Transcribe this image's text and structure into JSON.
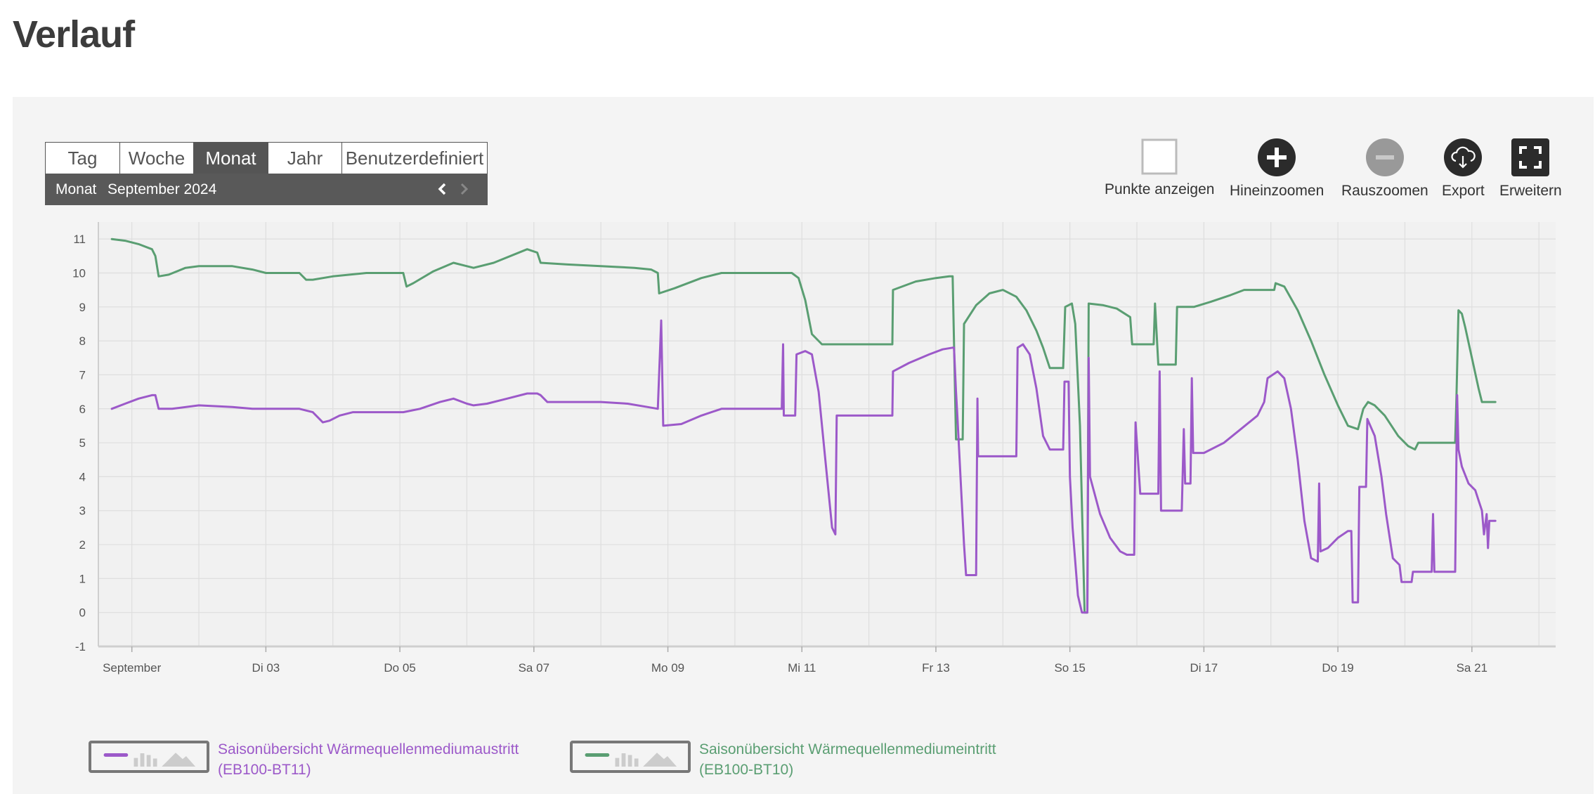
{
  "page": {
    "title": "Verlauf"
  },
  "period": {
    "tabs": [
      {
        "label": "Tag",
        "active": false
      },
      {
        "label": "Woche",
        "active": false
      },
      {
        "label": "Monat",
        "active": true
      },
      {
        "label": "Jahr",
        "active": false
      },
      {
        "label": "Benutzerdefiniert",
        "active": false
      }
    ],
    "selector_label": "Monat",
    "selector_value": "September 2024"
  },
  "toolbar": {
    "show_points": "Punkte anzeigen",
    "zoom_in": "Hineinzoomen",
    "zoom_out": "Rauszoomen",
    "export": "Export",
    "expand": "Erweitern"
  },
  "legend": {
    "series1_line1": "Saisonübersicht Wärmequellenmediumaustritt",
    "series1_line2": "(EB100-BT11)",
    "series2_line1": "Saisonübersicht Wärmequellenmediumeintritt",
    "series2_line2": "(EB100-BT10)"
  },
  "colors": {
    "purple": "#9c59c9",
    "green": "#5a9e72",
    "accent_dark": "#555555"
  },
  "chart_data": {
    "type": "line",
    "xlim": [
      0.5,
      22.25
    ],
    "ylim": [
      -1,
      11.5
    ],
    "yticks": [
      -1,
      0,
      1,
      2,
      3,
      4,
      5,
      6,
      7,
      8,
      9,
      10,
      11
    ],
    "xticks": [
      {
        "x": 1,
        "label": "September"
      },
      {
        "x": 3,
        "label": "Di 03"
      },
      {
        "x": 5,
        "label": "Do 05"
      },
      {
        "x": 7,
        "label": "Sa 07"
      },
      {
        "x": 9,
        "label": "Mo 09"
      },
      {
        "x": 11,
        "label": "Mi 11"
      },
      {
        "x": 13,
        "label": "Fr 13"
      },
      {
        "x": 15,
        "label": "So 15"
      },
      {
        "x": 17,
        "label": "Di 17"
      },
      {
        "x": 19,
        "label": "Do 19"
      },
      {
        "x": 21,
        "label": "Sa 21"
      }
    ],
    "series": [
      {
        "name": "Saisonübersicht Wärmequellenmediumeintritt (EB100-BT10)",
        "color": "#5a9e72",
        "points": [
          [
            0.7,
            11
          ],
          [
            0.9,
            10.95
          ],
          [
            1.1,
            10.85
          ],
          [
            1.3,
            10.7
          ],
          [
            1.35,
            10.5
          ],
          [
            1.4,
            9.9
          ],
          [
            1.55,
            9.95
          ],
          [
            1.8,
            10.15
          ],
          [
            2,
            10.2
          ],
          [
            2.5,
            10.2
          ],
          [
            2.8,
            10.1
          ],
          [
            3,
            10
          ],
          [
            3.3,
            10
          ],
          [
            3.5,
            10
          ],
          [
            3.6,
            9.8
          ],
          [
            3.7,
            9.8
          ],
          [
            4,
            9.9
          ],
          [
            4.5,
            10
          ],
          [
            5.05,
            10
          ],
          [
            5.1,
            9.6
          ],
          [
            5.2,
            9.7
          ],
          [
            5.5,
            10.05
          ],
          [
            5.8,
            10.3
          ],
          [
            6,
            10.2
          ],
          [
            6.1,
            10.15
          ],
          [
            6.4,
            10.3
          ],
          [
            6.9,
            10.7
          ],
          [
            7.05,
            10.6
          ],
          [
            7.1,
            10.3
          ],
          [
            7.5,
            10.25
          ],
          [
            8,
            10.2
          ],
          [
            8.5,
            10.15
          ],
          [
            8.75,
            10.1
          ],
          [
            8.85,
            10
          ],
          [
            8.87,
            9.4
          ],
          [
            9.1,
            9.55
          ],
          [
            9.5,
            9.85
          ],
          [
            9.8,
            10
          ],
          [
            10,
            10
          ],
          [
            10.5,
            10
          ],
          [
            10.85,
            10
          ],
          [
            10.95,
            9.85
          ],
          [
            11.05,
            9.2
          ],
          [
            11.15,
            8.2
          ],
          [
            11.3,
            7.9
          ],
          [
            11.7,
            7.9
          ],
          [
            12.35,
            7.9
          ],
          [
            12.36,
            9.5
          ],
          [
            12.7,
            9.75
          ],
          [
            13,
            9.85
          ],
          [
            13.2,
            9.9
          ],
          [
            13.25,
            9.9
          ],
          [
            13.3,
            5.1
          ],
          [
            13.4,
            5.1
          ],
          [
            13.42,
            8.5
          ],
          [
            13.6,
            9.05
          ],
          [
            13.8,
            9.4
          ],
          [
            14,
            9.5
          ],
          [
            14.2,
            9.3
          ],
          [
            14.35,
            8.9
          ],
          [
            14.5,
            8.3
          ],
          [
            14.6,
            7.8
          ],
          [
            14.7,
            7.2
          ],
          [
            14.9,
            7.2
          ],
          [
            14.93,
            9
          ],
          [
            15.03,
            9.1
          ],
          [
            15.08,
            8.5
          ],
          [
            15.15,
            5.5
          ],
          [
            15.22,
            0
          ],
          [
            15.26,
            0
          ],
          [
            15.28,
            9.1
          ],
          [
            15.5,
            9.05
          ],
          [
            15.7,
            8.95
          ],
          [
            15.9,
            8.7
          ],
          [
            15.93,
            7.9
          ],
          [
            16.2,
            7.9
          ],
          [
            16.25,
            7.9
          ],
          [
            16.27,
            9.1
          ],
          [
            16.32,
            7.3
          ],
          [
            16.58,
            7.3
          ],
          [
            16.6,
            9
          ],
          [
            16.85,
            9
          ],
          [
            17.1,
            9.15
          ],
          [
            17.4,
            9.35
          ],
          [
            17.6,
            9.5
          ],
          [
            17.95,
            9.5
          ],
          [
            18.05,
            9.5
          ],
          [
            18.07,
            9.7
          ],
          [
            18.2,
            9.6
          ],
          [
            18.4,
            8.9
          ],
          [
            18.6,
            8
          ],
          [
            18.8,
            7
          ],
          [
            19,
            6.1
          ],
          [
            19.15,
            5.5
          ],
          [
            19.3,
            5.4
          ],
          [
            19.38,
            6
          ],
          [
            19.45,
            6.2
          ],
          [
            19.55,
            6.1
          ],
          [
            19.7,
            5.8
          ],
          [
            19.9,
            5.2
          ],
          [
            20.05,
            4.9
          ],
          [
            20.15,
            4.8
          ],
          [
            20.2,
            5
          ],
          [
            20.4,
            5
          ],
          [
            20.75,
            5
          ],
          [
            20.77,
            6.4
          ],
          [
            20.8,
            8.9
          ],
          [
            20.85,
            8.8
          ],
          [
            20.9,
            8.4
          ],
          [
            21,
            7.5
          ],
          [
            21.1,
            6.6
          ],
          [
            21.15,
            6.2
          ],
          [
            21.2,
            6.2
          ],
          [
            21.35,
            6.2
          ]
        ]
      },
      {
        "name": "Saisonübersicht Wärmequellenmediumaustritt (EB100-BT11)",
        "color": "#9c59c9",
        "points": [
          [
            0.7,
            6
          ],
          [
            0.9,
            6.15
          ],
          [
            1.1,
            6.3
          ],
          [
            1.3,
            6.4
          ],
          [
            1.35,
            6.4
          ],
          [
            1.4,
            6
          ],
          [
            1.6,
            6
          ],
          [
            2,
            6.1
          ],
          [
            2.5,
            6.05
          ],
          [
            2.8,
            6
          ],
          [
            3,
            6
          ],
          [
            3.5,
            6
          ],
          [
            3.6,
            5.95
          ],
          [
            3.7,
            5.9
          ],
          [
            3.85,
            5.6
          ],
          [
            3.95,
            5.65
          ],
          [
            4.1,
            5.8
          ],
          [
            4.3,
            5.9
          ],
          [
            4.8,
            5.9
          ],
          [
            5.05,
            5.9
          ],
          [
            5.3,
            6
          ],
          [
            5.6,
            6.2
          ],
          [
            5.8,
            6.3
          ],
          [
            6,
            6.15
          ],
          [
            6.1,
            6.1
          ],
          [
            6.3,
            6.15
          ],
          [
            6.6,
            6.3
          ],
          [
            6.9,
            6.45
          ],
          [
            7.05,
            6.45
          ],
          [
            7.1,
            6.4
          ],
          [
            7.2,
            6.2
          ],
          [
            7.5,
            6.2
          ],
          [
            8,
            6.2
          ],
          [
            8.4,
            6.15
          ],
          [
            8.7,
            6.05
          ],
          [
            8.85,
            6
          ],
          [
            8.9,
            8.6
          ],
          [
            8.93,
            5.5
          ],
          [
            9.2,
            5.55
          ],
          [
            9.5,
            5.8
          ],
          [
            9.8,
            6
          ],
          [
            10,
            6
          ],
          [
            10.5,
            6
          ],
          [
            10.7,
            6
          ],
          [
            10.72,
            7.9
          ],
          [
            10.73,
            5.8
          ],
          [
            10.9,
            5.8
          ],
          [
            10.92,
            7.6
          ],
          [
            11.05,
            7.7
          ],
          [
            11.15,
            7.6
          ],
          [
            11.25,
            6.5
          ],
          [
            11.35,
            4.5
          ],
          [
            11.45,
            2.5
          ],
          [
            11.5,
            2.3
          ],
          [
            11.52,
            5.8
          ],
          [
            11.6,
            5.8
          ],
          [
            12.35,
            5.8
          ],
          [
            12.36,
            7.1
          ],
          [
            12.6,
            7.35
          ],
          [
            12.9,
            7.6
          ],
          [
            13.1,
            7.75
          ],
          [
            13.25,
            7.8
          ],
          [
            13.27,
            7.8
          ],
          [
            13.3,
            6.5
          ],
          [
            13.32,
            5.8
          ],
          [
            13.38,
            3.5
          ],
          [
            13.42,
            2
          ],
          [
            13.45,
            1.1
          ],
          [
            13.55,
            1.1
          ],
          [
            13.6,
            1.1
          ],
          [
            13.62,
            6.3
          ],
          [
            13.63,
            4.6
          ],
          [
            14,
            4.6
          ],
          [
            14.2,
            4.6
          ],
          [
            14.22,
            7.8
          ],
          [
            14.3,
            7.9
          ],
          [
            14.4,
            7.6
          ],
          [
            14.5,
            6.6
          ],
          [
            14.6,
            5.2
          ],
          [
            14.7,
            4.8
          ],
          [
            14.9,
            4.8
          ],
          [
            14.92,
            6.8
          ],
          [
            14.98,
            6.8
          ],
          [
            15,
            4
          ],
          [
            15.04,
            2.5
          ],
          [
            15.08,
            1.5
          ],
          [
            15.12,
            0.5
          ],
          [
            15.18,
            0
          ],
          [
            15.26,
            0
          ],
          [
            15.28,
            7.5
          ],
          [
            15.3,
            4
          ],
          [
            15.45,
            2.9
          ],
          [
            15.6,
            2.2
          ],
          [
            15.75,
            1.8
          ],
          [
            15.85,
            1.7
          ],
          [
            15.96,
            1.7
          ],
          [
            15.98,
            5.6
          ],
          [
            16.05,
            3.5
          ],
          [
            16.22,
            3.5
          ],
          [
            16.32,
            3.5
          ],
          [
            16.34,
            7.1
          ],
          [
            16.36,
            3
          ],
          [
            16.48,
            3
          ],
          [
            16.67,
            3
          ],
          [
            16.7,
            5.4
          ],
          [
            16.72,
            3.8
          ],
          [
            16.8,
            3.8
          ],
          [
            16.82,
            6.9
          ],
          [
            16.84,
            4.7
          ],
          [
            17,
            4.7
          ],
          [
            17.3,
            5
          ],
          [
            17.55,
            5.4
          ],
          [
            17.8,
            5.8
          ],
          [
            17.9,
            6.2
          ],
          [
            17.95,
            6.9
          ],
          [
            18.1,
            7.1
          ],
          [
            18.2,
            6.9
          ],
          [
            18.3,
            6
          ],
          [
            18.4,
            4.5
          ],
          [
            18.5,
            2.7
          ],
          [
            18.6,
            1.6
          ],
          [
            18.7,
            1.5
          ],
          [
            18.72,
            3.8
          ],
          [
            18.74,
            1.8
          ],
          [
            18.85,
            1.9
          ],
          [
            19,
            2.2
          ],
          [
            19.15,
            2.4
          ],
          [
            19.2,
            2.4
          ],
          [
            19.22,
            0.3
          ],
          [
            19.3,
            0.3
          ],
          [
            19.32,
            3.7
          ],
          [
            19.42,
            3.7
          ],
          [
            19.44,
            5.7
          ],
          [
            19.55,
            5.2
          ],
          [
            19.65,
            4
          ],
          [
            19.72,
            2.9
          ],
          [
            19.82,
            1.6
          ],
          [
            19.92,
            1.4
          ],
          [
            19.95,
            0.9
          ],
          [
            20.1,
            0.9
          ],
          [
            20.12,
            1.2
          ],
          [
            20.35,
            1.2
          ],
          [
            20.4,
            1.2
          ],
          [
            20.42,
            2.9
          ],
          [
            20.44,
            1.2
          ],
          [
            20.75,
            1.2
          ],
          [
            20.78,
            6.4
          ],
          [
            20.8,
            4.8
          ],
          [
            20.85,
            4.3
          ],
          [
            20.95,
            3.8
          ],
          [
            21.05,
            3.6
          ],
          [
            21.1,
            3.3
          ],
          [
            21.15,
            3
          ],
          [
            21.18,
            2.3
          ],
          [
            21.22,
            2.9
          ],
          [
            21.24,
            1.9
          ],
          [
            21.26,
            2.7
          ],
          [
            21.35,
            2.7
          ]
        ]
      }
    ]
  }
}
